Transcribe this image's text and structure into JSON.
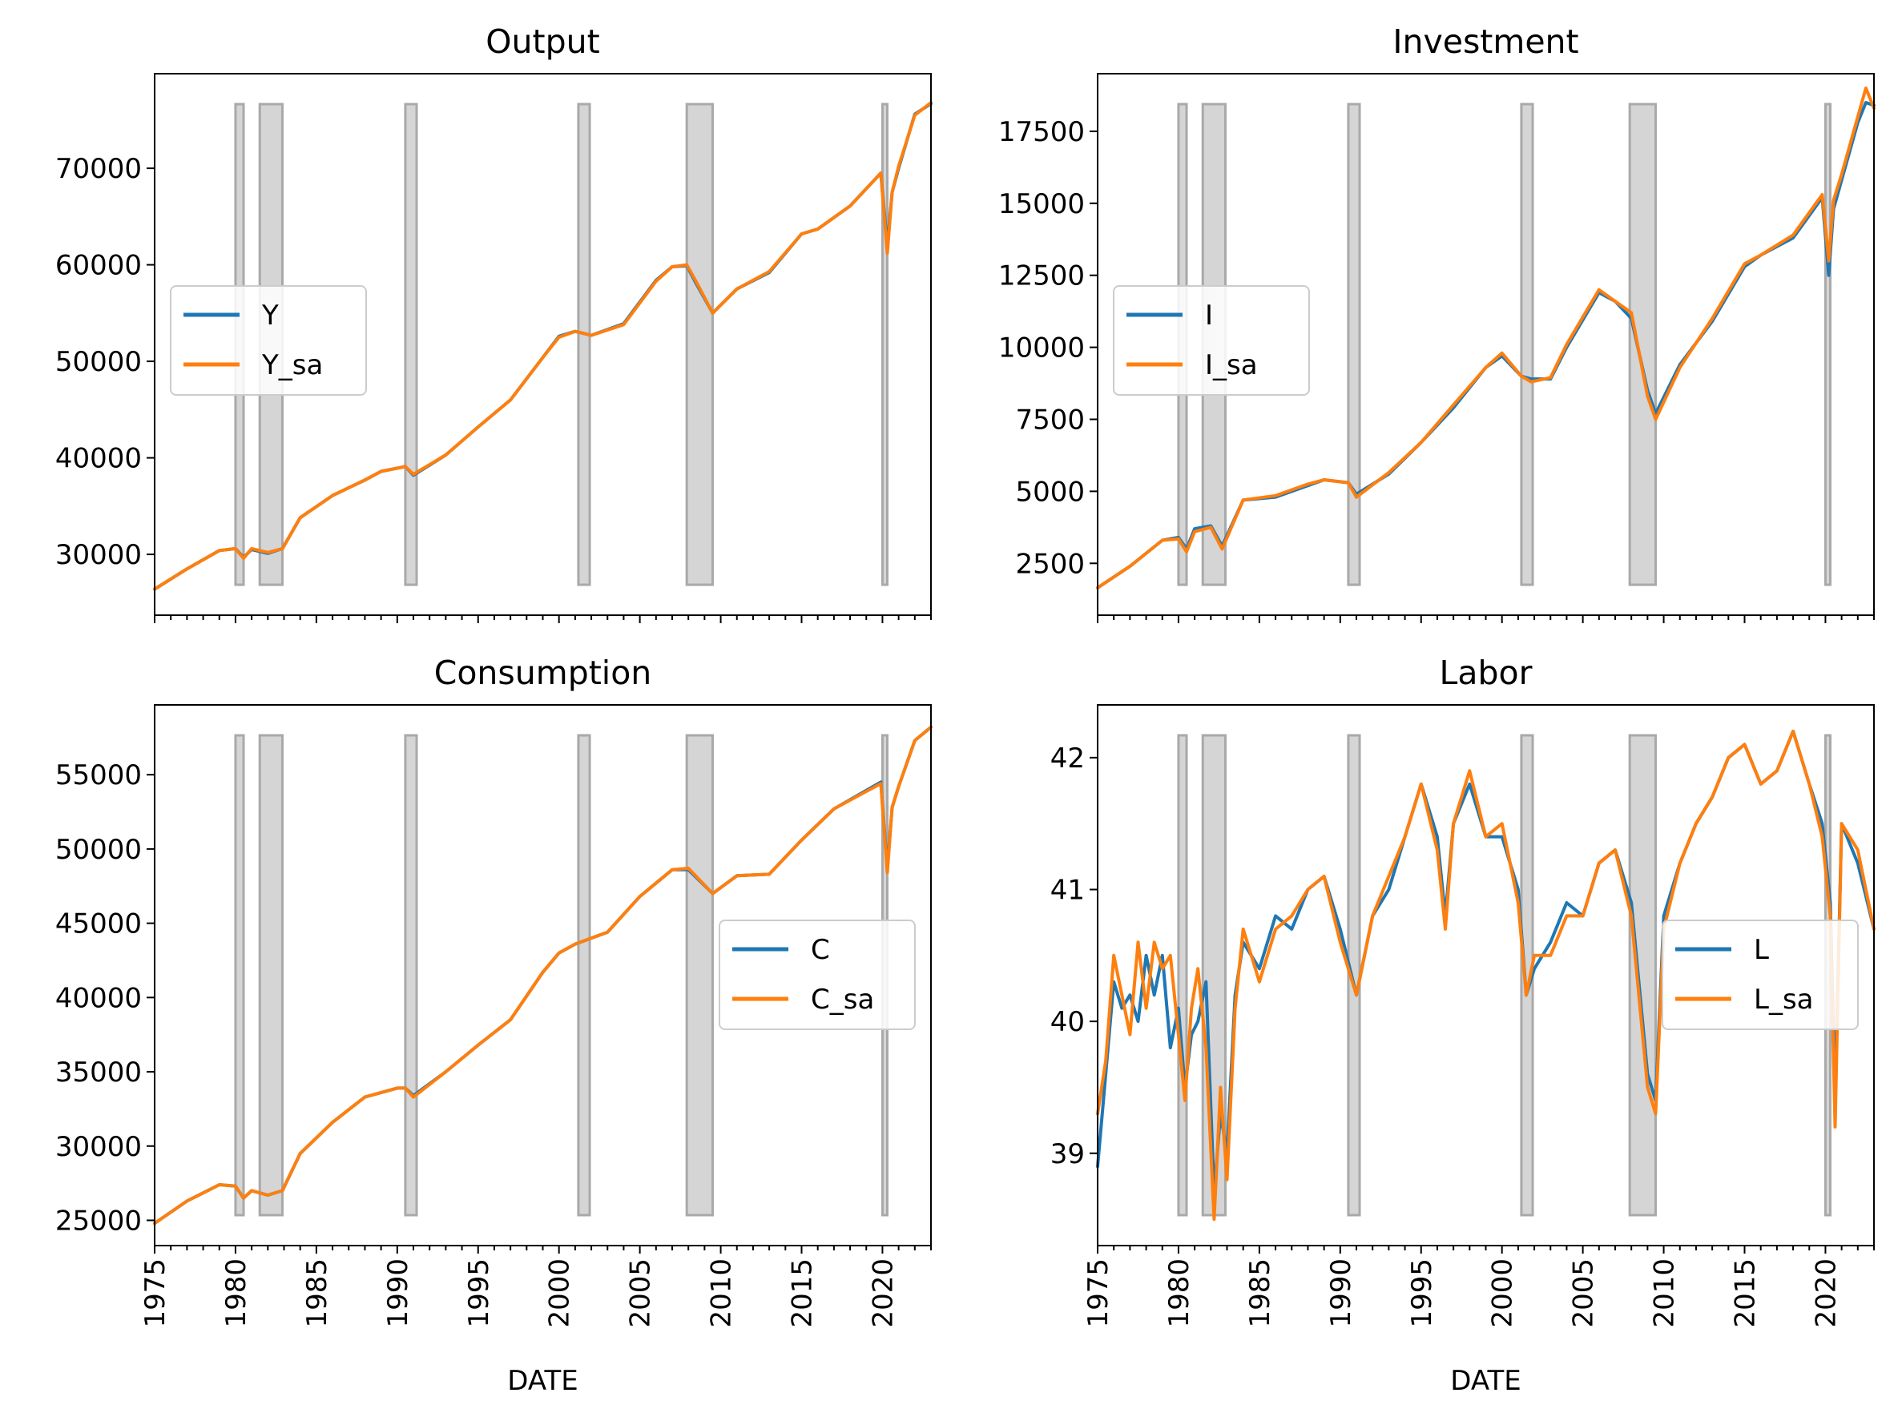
{
  "colors": {
    "raw": "#1f77b4",
    "seasonally_adjusted": "#ff7f0e",
    "recession_fill": "#d3d3d3",
    "recession_edge": "#a9a9a9"
  },
  "xaxis": {
    "label": "DATE",
    "ticks": [
      1975,
      1980,
      1985,
      1990,
      1995,
      2000,
      2005,
      2010,
      2015,
      2020
    ],
    "tick_labels": [
      "1975",
      "1980",
      "1985",
      "1990",
      "1995",
      "2000",
      "2005",
      "2010",
      "2015",
      "2020"
    ],
    "xlim": [
      1975,
      2023
    ]
  },
  "recessions": [
    [
      1980.0,
      1980.5
    ],
    [
      1981.5,
      1982.9
    ],
    [
      1990.5,
      1991.2
    ],
    [
      2001.2,
      2001.9
    ],
    [
      2007.9,
      2009.5
    ],
    [
      2020.0,
      2020.3
    ]
  ],
  "chart_data": [
    {
      "type": "line",
      "title": "Output",
      "xlabel": "",
      "ylim": [
        23700,
        79800
      ],
      "yticks": [
        30000,
        40000,
        50000,
        60000,
        70000
      ],
      "ytick_labels": [
        "30000",
        "40000",
        "50000",
        "60000",
        "70000"
      ],
      "legend": [
        "Y",
        "Y_sa"
      ],
      "legend_position": "center-left",
      "x": [
        1975,
        1977,
        1979,
        1980,
        1980.5,
        1981,
        1982,
        1982.9,
        1984,
        1986,
        1988,
        1989,
        1990.5,
        1991,
        1993,
        1995,
        1997,
        1999,
        2000,
        2001,
        2002,
        2004,
        2006,
        2007,
        2007.9,
        2008.5,
        2009.5,
        2011,
        2013,
        2015,
        2016,
        2018,
        2019.9,
        2020.3,
        2020.6,
        2021,
        2022,
        2023
      ],
      "series": [
        {
          "name": "Y",
          "values": [
            26400,
            28500,
            30400,
            30600,
            29700,
            30500,
            30100,
            30600,
            33800,
            36100,
            37700,
            38600,
            39100,
            38200,
            40300,
            43200,
            46000,
            50400,
            52600,
            53100,
            52700,
            53900,
            58400,
            59800,
            59900,
            58000,
            55000,
            57500,
            59200,
            63200,
            63700,
            66100,
            69500,
            62000,
            67500,
            70000,
            75600,
            76700
          ]
        },
        {
          "name": "Y_sa",
          "values": [
            26400,
            28500,
            30400,
            30600,
            29600,
            30600,
            30200,
            30600,
            33800,
            36100,
            37700,
            38600,
            39100,
            38300,
            40300,
            43200,
            46000,
            50400,
            52500,
            53100,
            52700,
            53800,
            58300,
            59800,
            60000,
            58200,
            55000,
            57500,
            59300,
            63200,
            63700,
            66100,
            69500,
            61200,
            67500,
            70200,
            75500,
            76800
          ]
        }
      ]
    },
    {
      "type": "line",
      "title": "Investment",
      "xlabel": "",
      "ylim": [
        700,
        19500
      ],
      "yticks": [
        2500,
        5000,
        7500,
        10000,
        12500,
        15000,
        17500
      ],
      "ytick_labels": [
        "2500",
        "5000",
        "7500",
        "10000",
        "12500",
        "15000",
        "17500"
      ],
      "legend": [
        "I",
        "I_sa"
      ],
      "legend_position": "center-left",
      "x": [
        1975,
        1977,
        1979,
        1980,
        1980.5,
        1981,
        1982,
        1982.7,
        1984,
        1986,
        1988,
        1989,
        1990.5,
        1991,
        1993,
        1995,
        1997,
        1999,
        2000,
        2001.2,
        2001.8,
        2003,
        2004,
        2006,
        2007,
        2008,
        2009,
        2009.5,
        2011,
        2013,
        2015,
        2016,
        2018,
        2019.8,
        2020.2,
        2020.5,
        2021,
        2022,
        2022.5,
        2023
      ],
      "series": [
        {
          "name": "I",
          "values": [
            1650,
            2400,
            3300,
            3400,
            3000,
            3700,
            3800,
            3100,
            4700,
            4800,
            5200,
            5400,
            5300,
            4900,
            5600,
            6700,
            7900,
            9300,
            9700,
            9000,
            8900,
            8900,
            10000,
            11900,
            11600,
            11000,
            8500,
            7700,
            9400,
            10900,
            12800,
            13200,
            13800,
            15200,
            12500,
            14800,
            15800,
            17800,
            18500,
            18400
          ]
        },
        {
          "name": "I_sa",
          "values": [
            1650,
            2400,
            3300,
            3350,
            2900,
            3600,
            3750,
            3000,
            4700,
            4850,
            5250,
            5400,
            5300,
            4800,
            5650,
            6700,
            8000,
            9300,
            9800,
            9000,
            8800,
            8950,
            10100,
            12000,
            11600,
            11200,
            8300,
            7500,
            9300,
            11000,
            12900,
            13200,
            13900,
            15300,
            13000,
            15100,
            16000,
            18000,
            19000,
            18300
          ]
        }
      ]
    },
    {
      "type": "line",
      "title": "Consumption",
      "xlabel": "DATE",
      "ylim": [
        23300,
        59700
      ],
      "yticks": [
        25000,
        30000,
        35000,
        40000,
        45000,
        50000,
        55000
      ],
      "ytick_labels": [
        "25000",
        "30000",
        "35000",
        "40000",
        "45000",
        "50000",
        "55000"
      ],
      "legend": [
        "C",
        "C_sa"
      ],
      "legend_position": "center-right",
      "x": [
        1975,
        1977,
        1979,
        1980,
        1980.5,
        1981,
        1982,
        1982.9,
        1984,
        1986,
        1988,
        1990,
        1990.5,
        1991,
        1993,
        1995,
        1997,
        1999,
        2000,
        2001,
        2003,
        2005,
        2007,
        2008,
        2009.5,
        2011,
        2013,
        2015,
        2017,
        2019.9,
        2020.3,
        2020.6,
        2021,
        2022,
        2023
      ],
      "series": [
        {
          "name": "C",
          "values": [
            24800,
            26300,
            27400,
            27300,
            26500,
            27000,
            26700,
            27000,
            29500,
            31600,
            33300,
            33900,
            33900,
            33400,
            35000,
            36800,
            38500,
            41700,
            43000,
            43600,
            44400,
            46800,
            48600,
            48600,
            47000,
            48200,
            48300,
            50600,
            52700,
            54500,
            48700,
            52800,
            54200,
            57300,
            58200
          ]
        },
        {
          "name": "C_sa",
          "values": [
            24800,
            26300,
            27400,
            27300,
            26500,
            27000,
            26700,
            27000,
            29500,
            31600,
            33300,
            33900,
            33900,
            33300,
            35000,
            36800,
            38500,
            41700,
            43000,
            43600,
            44400,
            46800,
            48600,
            48700,
            47000,
            48200,
            48300,
            50600,
            52700,
            54400,
            48400,
            52800,
            54200,
            57300,
            58200
          ]
        }
      ]
    },
    {
      "type": "line",
      "title": "Labor",
      "xlabel": "DATE",
      "ylim": [
        38.3,
        42.4
      ],
      "yticks": [
        39,
        40,
        41,
        42
      ],
      "ytick_labels": [
        "39",
        "40",
        "41",
        "42"
      ],
      "legend": [
        "L",
        "L_sa"
      ],
      "legend_position": "center-right",
      "x": [
        1975,
        1975.5,
        1976,
        1976.5,
        1977,
        1977.5,
        1978,
        1978.5,
        1979,
        1979.5,
        1980,
        1980.4,
        1980.8,
        1981.2,
        1981.7,
        1982.2,
        1982.6,
        1983,
        1983.5,
        1984,
        1985,
        1986,
        1987,
        1988,
        1989,
        1990,
        1991,
        1992,
        1993,
        1994,
        1995,
        1996,
        1996.5,
        1997,
        1998,
        1999,
        2000,
        2001,
        2001.5,
        2002,
        2003,
        2004,
        2005,
        2006,
        2007,
        2008,
        2009,
        2009.5,
        2010,
        2011,
        2012,
        2013,
        2014,
        2015,
        2016,
        2017,
        2018,
        2019,
        2019.8,
        2020.3,
        2020.6,
        2021,
        2022,
        2023
      ],
      "series": [
        {
          "name": "L",
          "values": [
            38.9,
            39.6,
            40.3,
            40.1,
            40.2,
            40.0,
            40.5,
            40.2,
            40.5,
            39.8,
            40.1,
            39.5,
            39.9,
            40.0,
            40.3,
            38.7,
            39.3,
            39.0,
            40.2,
            40.6,
            40.4,
            40.8,
            40.7,
            41.0,
            41.1,
            40.7,
            40.2,
            40.8,
            41.0,
            41.4,
            41.8,
            41.4,
            40.8,
            41.5,
            41.8,
            41.4,
            41.4,
            41.0,
            40.2,
            40.4,
            40.6,
            40.9,
            40.8,
            41.2,
            41.3,
            40.9,
            39.6,
            39.4,
            40.8,
            41.2,
            41.5,
            41.7,
            42.0,
            42.1,
            41.8,
            41.9,
            42.2,
            41.8,
            41.5,
            40.9,
            39.4,
            41.5,
            41.2,
            40.7
          ]
        },
        {
          "name": "L_sa",
          "values": [
            39.3,
            39.7,
            40.5,
            40.2,
            39.9,
            40.6,
            40.1,
            40.6,
            40.4,
            40.5,
            39.9,
            39.4,
            40.1,
            40.4,
            39.8,
            38.5,
            39.5,
            38.8,
            40.1,
            40.7,
            40.3,
            40.7,
            40.8,
            41.0,
            41.1,
            40.6,
            40.2,
            40.8,
            41.1,
            41.4,
            41.8,
            41.3,
            40.7,
            41.5,
            41.9,
            41.4,
            41.5,
            40.9,
            40.2,
            40.5,
            40.5,
            40.8,
            40.8,
            41.2,
            41.3,
            40.8,
            39.5,
            39.3,
            40.7,
            41.2,
            41.5,
            41.7,
            42.0,
            42.1,
            41.8,
            41.9,
            42.2,
            41.8,
            41.4,
            40.8,
            39.2,
            41.5,
            41.3,
            40.7
          ]
        }
      ]
    }
  ]
}
